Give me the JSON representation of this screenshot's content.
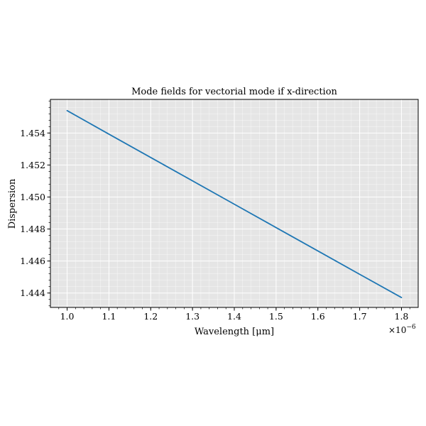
{
  "chart_data": {
    "type": "line",
    "title": "Mode fields for vectorial mode if x-direction",
    "xlabel": "Wavelength [μm]",
    "ylabel": "Dispersion",
    "x_offset_label_base": "×10",
    "x_offset_label_exp": "−6",
    "xlim": [
      9.6e-07,
      1.84e-06
    ],
    "ylim": [
      1.4431,
      1.4561
    ],
    "x_ticks": [
      1e-06,
      1.1e-06,
      1.2e-06,
      1.3e-06,
      1.4e-06,
      1.5e-06,
      1.6e-06,
      1.7e-06,
      1.8e-06
    ],
    "x_tick_labels": [
      "1.0",
      "1.1",
      "1.2",
      "1.3",
      "1.4",
      "1.5",
      "1.6",
      "1.7",
      "1.8"
    ],
    "y_ticks": [
      1.444,
      1.446,
      1.448,
      1.45,
      1.452,
      1.454
    ],
    "y_tick_labels": [
      "1.444",
      "1.446",
      "1.448",
      "1.450",
      "1.452",
      "1.454"
    ],
    "grid": true,
    "series": [
      {
        "color": "#1f77b4",
        "x": [
          1e-06,
          1.1e-06,
          1.2e-06,
          1.3e-06,
          1.4e-06,
          1.5e-06,
          1.6e-06,
          1.7e-06,
          1.8e-06
        ],
        "y": [
          1.4554,
          1.45393,
          1.45247,
          1.45101,
          1.44955,
          1.44809,
          1.44663,
          1.44517,
          1.44372
        ]
      }
    ]
  }
}
